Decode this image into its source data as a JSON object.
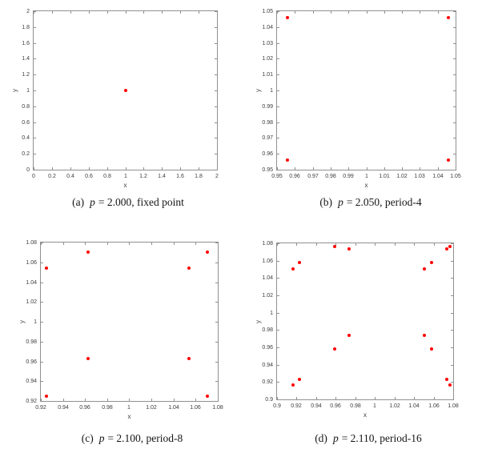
{
  "marker_color": "#ff0000",
  "axis_color": "#909090",
  "label_color": "#3d3d3d",
  "chart_data": [
    {
      "id": "a",
      "type": "scatter",
      "caption": {
        "index": "(a)",
        "var": "p",
        "rest": "= 2.000, fixed point"
      },
      "xlabel": "x",
      "ylabel": "y",
      "xlim": [
        0,
        2
      ],
      "ylim": [
        0,
        2
      ],
      "xticks": [
        0,
        0.2,
        0.4,
        0.6,
        0.8,
        1,
        1.2,
        1.4,
        1.6,
        1.8,
        2
      ],
      "xtick_labels": [
        "0",
        "0.2",
        "0.4",
        "0.6",
        "0.8",
        "1",
        "1.2",
        "1.4",
        "1.6",
        "1.8",
        "2"
      ],
      "yticks": [
        0,
        0.2,
        0.4,
        0.6,
        0.8,
        1,
        1.2,
        1.4,
        1.6,
        1.8,
        2
      ],
      "ytick_labels": [
        "0",
        "0.2",
        "0.4",
        "0.6",
        "0.8",
        "1",
        "1.2",
        "1.4",
        "1.6",
        "1.8",
        "2"
      ],
      "grid": false,
      "points": [
        [
          1,
          1
        ]
      ]
    },
    {
      "id": "b",
      "type": "scatter",
      "caption": {
        "index": "(b)",
        "var": "p",
        "rest": "= 2.050, period-4"
      },
      "xlabel": "x",
      "ylabel": "y",
      "xlim": [
        0.95,
        1.05
      ],
      "ylim": [
        0.95,
        1.05
      ],
      "xticks": [
        0.95,
        0.96,
        0.97,
        0.98,
        0.99,
        1,
        1.01,
        1.02,
        1.03,
        1.04,
        1.05
      ],
      "xtick_labels": [
        "0.95",
        "0.96",
        "0.97",
        "0.98",
        "0.99",
        "1",
        "1.01",
        "1.02",
        "1.03",
        "1.04",
        "1.05"
      ],
      "yticks": [
        0.95,
        0.96,
        0.97,
        0.98,
        0.99,
        1,
        1.01,
        1.02,
        1.03,
        1.04,
        1.05
      ],
      "ytick_labels": [
        "0.95",
        "0.96",
        "0.97",
        "0.98",
        "0.99",
        "1",
        "1.01",
        "1.02",
        "1.03",
        "1.04",
        "1.05"
      ],
      "grid": false,
      "points": [
        [
          0.956,
          1.046
        ],
        [
          1.046,
          1.046
        ],
        [
          0.956,
          0.956
        ],
        [
          1.046,
          0.956
        ]
      ]
    },
    {
      "id": "c",
      "type": "scatter",
      "caption": {
        "index": "(c)",
        "var": "p",
        "rest": "= 2.100, period-8"
      },
      "xlabel": "x",
      "ylabel": "y",
      "xlim": [
        0.92,
        1.08
      ],
      "ylim": [
        0.92,
        1.08
      ],
      "xticks": [
        0.92,
        0.94,
        0.96,
        0.98,
        1,
        1.02,
        1.04,
        1.06,
        1.08
      ],
      "xtick_labels": [
        "0.92",
        "0.94",
        "0.96",
        "0.98",
        "1",
        "1.02",
        "1.04",
        "1.06",
        "1.08"
      ],
      "yticks": [
        0.92,
        0.94,
        0.96,
        0.98,
        1,
        1.02,
        1.04,
        1.06,
        1.08
      ],
      "ytick_labels": [
        "0.92",
        "0.94",
        "0.96",
        "0.98",
        "1",
        "1.02",
        "1.04",
        "1.06",
        "1.08"
      ],
      "grid": false,
      "points": [
        [
          0.963,
          1.0705
        ],
        [
          1.0705,
          1.0705
        ],
        [
          0.925,
          1.054
        ],
        [
          1.054,
          1.054
        ],
        [
          0.963,
          0.963
        ],
        [
          1.054,
          0.963
        ],
        [
          0.925,
          0.925
        ],
        [
          1.0705,
          0.925
        ]
      ]
    },
    {
      "id": "d",
      "type": "scatter",
      "caption": {
        "index": "(d)",
        "var": "p",
        "rest": "= 2.110, period-16"
      },
      "xlabel": "x",
      "ylabel": "y",
      "xlim": [
        0.9,
        1.08
      ],
      "ylim": [
        0.9,
        1.08
      ],
      "xticks": [
        0.9,
        0.92,
        0.94,
        0.96,
        0.98,
        1,
        1.02,
        1.04,
        1.06,
        1.08
      ],
      "xtick_labels": [
        "0.9",
        "0.92",
        "0.94",
        "0.96",
        "0.98",
        "1",
        "1.02",
        "1.04",
        "1.06",
        "1.08"
      ],
      "yticks": [
        0.9,
        0.92,
        0.94,
        0.96,
        0.98,
        1,
        1.02,
        1.04,
        1.06,
        1.08
      ],
      "ytick_labels": [
        "0.9",
        "0.92",
        "0.94",
        "0.96",
        "0.98",
        "1",
        "1.02",
        "1.04",
        "1.06",
        "1.08"
      ],
      "grid": false,
      "points": [
        [
          0.9165,
          1.0505
        ],
        [
          0.923,
          1.0575
        ],
        [
          0.9585,
          1.0765
        ],
        [
          0.974,
          1.0735
        ],
        [
          1.0505,
          1.0505
        ],
        [
          1.0575,
          1.0575
        ],
        [
          1.0735,
          1.0735
        ],
        [
          1.0765,
          1.0765
        ],
        [
          0.9585,
          0.9585
        ],
        [
          0.974,
          0.974
        ],
        [
          1.0505,
          0.974
        ],
        [
          1.0575,
          0.9585
        ],
        [
          0.9165,
          0.9165
        ],
        [
          0.923,
          0.923
        ],
        [
          1.0735,
          0.923
        ],
        [
          1.0765,
          0.9165
        ]
      ]
    }
  ]
}
